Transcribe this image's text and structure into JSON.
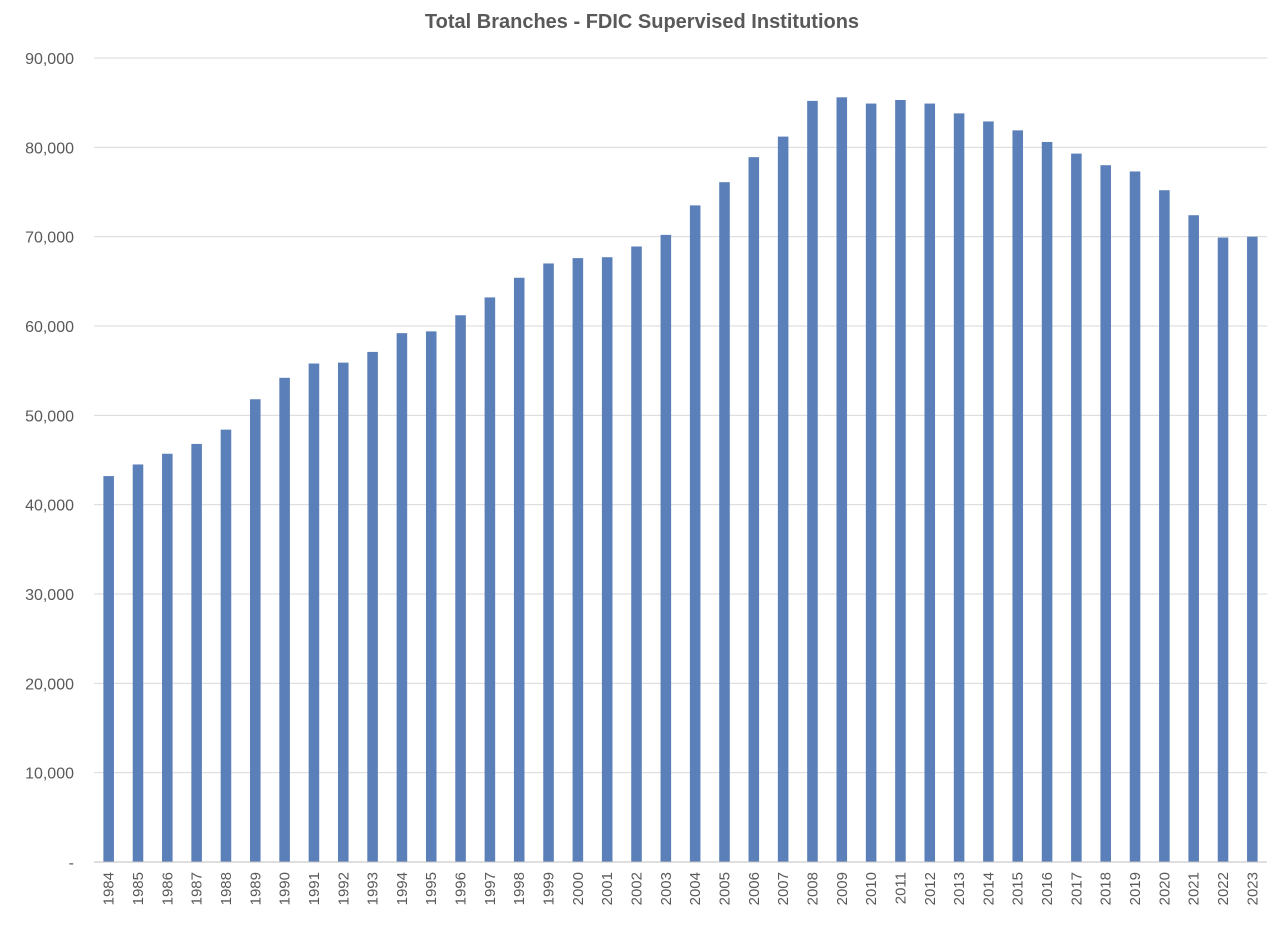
{
  "chart_data": {
    "type": "bar",
    "title": "Total Branches - FDIC Supervised Institutions",
    "xlabel": "",
    "ylabel": "",
    "ylim": [
      0,
      90000
    ],
    "yticks": [
      0,
      10000,
      20000,
      30000,
      40000,
      50000,
      60000,
      70000,
      80000,
      90000
    ],
    "ytick_labels": [
      "-",
      "10,000",
      "20,000",
      "30,000",
      "40,000",
      "50,000",
      "60,000",
      "70,000",
      "80,000",
      "90,000"
    ],
    "grid": true,
    "legend": "none",
    "bar_color": "#5b7fb8",
    "categories": [
      "1984",
      "1985",
      "1986",
      "1987",
      "1988",
      "1989",
      "1990",
      "1991",
      "1992",
      "1993",
      "1994",
      "1995",
      "1996",
      "1997",
      "1998",
      "1999",
      "2000",
      "2001",
      "2002",
      "2003",
      "2004",
      "2005",
      "2006",
      "2007",
      "2008",
      "2009",
      "2010",
      "2011",
      "2012",
      "2013",
      "2014",
      "2015",
      "2016",
      "2017",
      "2018",
      "2019",
      "2020",
      "2021",
      "2022",
      "2023"
    ],
    "values": [
      43200,
      44500,
      45700,
      46800,
      48400,
      51800,
      54200,
      55800,
      55900,
      57100,
      59200,
      59400,
      61200,
      63200,
      65400,
      67000,
      67600,
      67700,
      68900,
      70200,
      73500,
      76100,
      78900,
      81200,
      85200,
      85600,
      84900,
      85300,
      84900,
      83800,
      82900,
      81900,
      80600,
      79300,
      78000,
      77300,
      75200,
      72400,
      69900,
      70000
    ]
  }
}
